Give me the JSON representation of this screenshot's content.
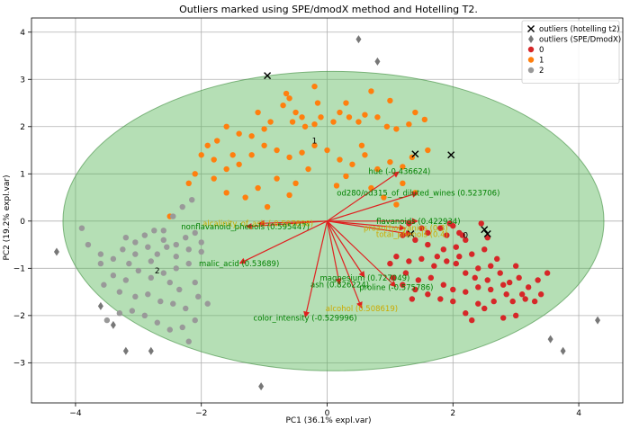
{
  "chart_data": {
    "type": "scatter",
    "title": "Outliers marked using SPE/dmodX method and Hotelling T2.",
    "xlabel": "PC1 (36.1% expl.var)",
    "ylabel": "PC2 (19.2% expl.var)",
    "xlim": [
      -4.7,
      4.7
    ],
    "ylim": [
      -3.85,
      4.3
    ],
    "x_ticks": [
      -4,
      -2,
      0,
      2,
      4
    ],
    "y_ticks": [
      -3,
      -2,
      -1,
      0,
      1,
      2,
      3,
      4
    ],
    "grid": true,
    "legend_position": "top-right",
    "legend": [
      {
        "label": "outliers (hotelling t2)",
        "marker": "x",
        "color": "#000000"
      },
      {
        "label": "outliers (SPE/DmodX)",
        "marker": "diamond",
        "color": "#777777"
      },
      {
        "label": "0",
        "marker": "circle",
        "color": "#d62728"
      },
      {
        "label": "1",
        "marker": "circle",
        "color": "#ff7f0e"
      },
      {
        "label": "2",
        "marker": "circle",
        "color": "#999999"
      }
    ],
    "ellipse": {
      "cx": 0.1,
      "cy": 0.0,
      "rx": 4.3,
      "ry": 3.17,
      "color": "#5cb85c"
    },
    "cluster_labels": [
      {
        "text": "1",
        "x": -0.2,
        "y": 1.7
      },
      {
        "text": "2",
        "x": -2.7,
        "y": -1.05
      },
      {
        "text": "0",
        "x": 2.2,
        "y": -0.3
      }
    ],
    "loadings": [
      {
        "label": "hue (-0.436624)",
        "x": 1.15,
        "y": 1.05,
        "color": "#008000"
      },
      {
        "label": "od280/od315_of_diluted_wines (0.523706)",
        "x": 1.45,
        "y": 0.6,
        "color": "#008000"
      },
      {
        "label": "alcalinity_of_ash (-0.597898)",
        "x": -1.1,
        "y": -0.05,
        "color": "#ccaa00"
      },
      {
        "label": "nonflavanoid_phenols (0.595447)",
        "x": -1.3,
        "y": -0.12,
        "color": "#008000"
      },
      {
        "label": "flavanoids (0.422934)",
        "x": 1.45,
        "y": 0.0,
        "color": "#008000"
      },
      {
        "label": "proanthocyanins (0.3)",
        "x": 1.25,
        "y": -0.15,
        "color": "#ccaa00"
      },
      {
        "label": "total_phenols (0.4)",
        "x": 1.35,
        "y": -0.28,
        "color": "#ccaa00"
      },
      {
        "label": "malic_acid (0.53689)",
        "x": -1.4,
        "y": -0.9,
        "color": "#008000"
      },
      {
        "label": "magnesium (0.727049)",
        "x": 0.6,
        "y": -1.2,
        "color": "#008000"
      },
      {
        "label": "proline (-0.575786)",
        "x": 1.1,
        "y": -1.4,
        "color": "#008000"
      },
      {
        "label": "ash (0.826224)",
        "x": 0.2,
        "y": -1.35,
        "color": "#008000"
      },
      {
        "label": "alcohol (0.508619)",
        "x": 0.55,
        "y": -1.85,
        "color": "#ccaa00"
      },
      {
        "label": "color_intensity (-0.529996)",
        "x": -0.35,
        "y": -2.05,
        "color": "#008000"
      }
    ],
    "series": [
      {
        "name": "0",
        "color": "#d62728",
        "points": [
          [
            1.3,
            -0.05
          ],
          [
            1.5,
            -0.15
          ],
          [
            1.6,
            -0.25
          ],
          [
            1.8,
            -0.15
          ],
          [
            1.9,
            -0.3
          ],
          [
            2.0,
            -0.1
          ],
          [
            2.1,
            -0.25
          ],
          [
            1.95,
            -0.05
          ],
          [
            2.2,
            -0.4
          ],
          [
            1.2,
            -0.3
          ],
          [
            1.4,
            -0.4
          ],
          [
            1.6,
            -0.5
          ],
          [
            1.85,
            -0.6
          ],
          [
            2.05,
            -0.55
          ],
          [
            2.3,
            -0.7
          ],
          [
            2.5,
            -0.6
          ],
          [
            2.7,
            -0.8
          ],
          [
            2.6,
            -0.95
          ],
          [
            2.4,
            -1.0
          ],
          [
            2.2,
            -1.1
          ],
          [
            2.05,
            -0.9
          ],
          [
            1.9,
            -0.85
          ],
          [
            1.7,
            -0.95
          ],
          [
            1.5,
            -0.8
          ],
          [
            1.3,
            -0.85
          ],
          [
            1.1,
            -0.75
          ],
          [
            1.0,
            -0.9
          ],
          [
            1.25,
            -1.1
          ],
          [
            1.45,
            -1.25
          ],
          [
            1.65,
            -1.2
          ],
          [
            1.85,
            -1.35
          ],
          [
            2.0,
            -1.45
          ],
          [
            2.2,
            -1.5
          ],
          [
            2.4,
            -1.4
          ],
          [
            2.55,
            -1.25
          ],
          [
            2.75,
            -1.1
          ],
          [
            2.9,
            -1.3
          ],
          [
            3.05,
            -1.2
          ],
          [
            3.2,
            -1.4
          ],
          [
            3.35,
            -1.25
          ],
          [
            3.5,
            -1.1
          ],
          [
            3.4,
            -1.55
          ],
          [
            3.15,
            -1.65
          ],
          [
            2.85,
            -1.55
          ],
          [
            2.65,
            -1.7
          ],
          [
            2.4,
            -1.75
          ],
          [
            2.2,
            -1.95
          ],
          [
            2.0,
            -1.7
          ],
          [
            1.8,
            -1.65
          ],
          [
            1.6,
            -1.55
          ],
          [
            1.4,
            -1.45
          ],
          [
            1.2,
            -1.35
          ],
          [
            1.05,
            -1.2
          ],
          [
            2.35,
            -1.2
          ],
          [
            2.55,
            -0.35
          ],
          [
            3.0,
            -0.95
          ],
          [
            2.95,
            -1.7
          ],
          [
            2.6,
            -1.45
          ],
          [
            3.3,
            -1.7
          ],
          [
            2.3,
            -2.1
          ],
          [
            3.0,
            -2.0
          ],
          [
            2.8,
            -2.05
          ],
          [
            2.5,
            -1.85
          ],
          [
            2.15,
            -0.3
          ],
          [
            1.75,
            -0.75
          ],
          [
            2.45,
            -0.05
          ],
          [
            1.35,
            -1.65
          ],
          [
            2.8,
            -1.35
          ],
          [
            3.1,
            -1.55
          ],
          [
            2.1,
            -0.75
          ]
        ]
      },
      {
        "name": "1",
        "color": "#ff7f0e",
        "points": [
          [
            -0.6,
            2.6
          ],
          [
            -0.65,
            2.7
          ],
          [
            -0.7,
            2.45
          ],
          [
            -0.5,
            2.3
          ],
          [
            -0.4,
            2.2
          ],
          [
            -0.55,
            2.1
          ],
          [
            -0.35,
            2.0
          ],
          [
            -0.2,
            2.05
          ],
          [
            -0.1,
            2.2
          ],
          [
            0.1,
            2.1
          ],
          [
            0.2,
            2.3
          ],
          [
            0.35,
            2.2
          ],
          [
            0.5,
            2.1
          ],
          [
            0.6,
            2.25
          ],
          [
            0.8,
            2.2
          ],
          [
            0.95,
            2.0
          ],
          [
            1.1,
            1.95
          ],
          [
            1.3,
            2.05
          ],
          [
            1.4,
            2.3
          ],
          [
            1.55,
            2.15
          ],
          [
            0.7,
            2.75
          ],
          [
            1.0,
            2.55
          ],
          [
            0.3,
            2.5
          ],
          [
            -0.2,
            2.85
          ],
          [
            -0.9,
            2.1
          ],
          [
            -1.1,
            2.3
          ],
          [
            -1.0,
            1.95
          ],
          [
            -1.2,
            1.8
          ],
          [
            -1.4,
            1.85
          ],
          [
            -1.6,
            2.0
          ],
          [
            -1.75,
            1.7
          ],
          [
            -1.9,
            1.6
          ],
          [
            -2.0,
            1.4
          ],
          [
            -1.8,
            1.3
          ],
          [
            -1.6,
            1.1
          ],
          [
            -1.4,
            1.2
          ],
          [
            -1.2,
            1.4
          ],
          [
            -1.0,
            1.6
          ],
          [
            -0.8,
            1.5
          ],
          [
            -0.6,
            1.35
          ],
          [
            -0.4,
            1.45
          ],
          [
            -0.2,
            1.6
          ],
          [
            0.0,
            1.5
          ],
          [
            0.2,
            1.3
          ],
          [
            0.4,
            1.2
          ],
          [
            0.6,
            1.4
          ],
          [
            0.8,
            1.1
          ],
          [
            1.0,
            1.25
          ],
          [
            1.2,
            1.15
          ],
          [
            1.35,
            1.35
          ],
          [
            0.7,
            0.7
          ],
          [
            0.9,
            0.5
          ],
          [
            1.2,
            0.8
          ],
          [
            1.4,
            0.6
          ],
          [
            -0.5,
            0.8
          ],
          [
            -0.8,
            0.9
          ],
          [
            -1.1,
            0.7
          ],
          [
            -1.3,
            0.5
          ],
          [
            -1.6,
            0.6
          ],
          [
            -1.8,
            0.9
          ],
          [
            -2.1,
            1.0
          ],
          [
            -2.2,
            0.8
          ],
          [
            -2.5,
            0.1
          ],
          [
            -1.5,
            1.4
          ],
          [
            -0.95,
            0.3
          ],
          [
            -0.3,
            1.1
          ],
          [
            0.3,
            0.95
          ],
          [
            -0.6,
            0.55
          ],
          [
            0.15,
            0.75
          ],
          [
            1.1,
            0.35
          ],
          [
            0.55,
            1.6
          ],
          [
            -0.15,
            2.5
          ],
          [
            1.6,
            1.5
          ]
        ]
      },
      {
        "name": "2",
        "color": "#999999",
        "points": [
          [
            -3.9,
            -0.15
          ],
          [
            -3.8,
            -0.5
          ],
          [
            -3.6,
            -0.7
          ],
          [
            -3.4,
            -0.8
          ],
          [
            -3.2,
            -0.35
          ],
          [
            -3.05,
            -0.45
          ],
          [
            -2.9,
            -0.3
          ],
          [
            -2.75,
            -0.2
          ],
          [
            -2.6,
            -0.4
          ],
          [
            -2.4,
            -0.5
          ],
          [
            -2.25,
            -0.35
          ],
          [
            -2.1,
            -0.25
          ],
          [
            -2.0,
            -0.65
          ],
          [
            -2.2,
            -0.9
          ],
          [
            -2.4,
            -1.0
          ],
          [
            -2.6,
            -1.1
          ],
          [
            -2.8,
            -1.2
          ],
          [
            -3.0,
            -1.05
          ],
          [
            -3.2,
            -1.25
          ],
          [
            -3.4,
            -1.15
          ],
          [
            -3.55,
            -1.35
          ],
          [
            -3.3,
            -1.5
          ],
          [
            -3.05,
            -1.6
          ],
          [
            -2.85,
            -1.55
          ],
          [
            -2.65,
            -1.7
          ],
          [
            -2.45,
            -1.75
          ],
          [
            -2.25,
            -1.85
          ],
          [
            -2.05,
            -1.6
          ],
          [
            -1.9,
            -1.75
          ],
          [
            -2.1,
            -2.1
          ],
          [
            -2.3,
            -2.25
          ],
          [
            -2.5,
            -2.3
          ],
          [
            -2.7,
            -2.15
          ],
          [
            -2.9,
            -2.0
          ],
          [
            -3.1,
            -1.9
          ],
          [
            -3.3,
            -1.95
          ],
          [
            -3.5,
            -2.1
          ],
          [
            -2.2,
            -0.6
          ],
          [
            -2.4,
            -0.75
          ],
          [
            -2.55,
            -0.55
          ],
          [
            -2.7,
            -0.7
          ],
          [
            -2.85,
            -0.55
          ],
          [
            -3.05,
            -0.7
          ],
          [
            -3.25,
            -0.6
          ],
          [
            -2.6,
            -0.2
          ],
          [
            -2.45,
            0.1
          ],
          [
            -2.15,
            0.45
          ],
          [
            -2.3,
            0.3
          ],
          [
            -2.0,
            -0.45
          ],
          [
            -2.1,
            -1.3
          ],
          [
            -2.35,
            -1.45
          ],
          [
            -2.8,
            -0.85
          ],
          [
            -3.15,
            -0.9
          ],
          [
            -2.2,
            -2.55
          ],
          [
            -2.5,
            -1.3
          ],
          [
            -3.6,
            -0.9
          ]
        ]
      },
      {
        "name": "outliers (hotelling t2)",
        "color": "#000000",
        "points": [
          [
            -0.95,
            3.08
          ],
          [
            1.4,
            1.42
          ],
          [
            1.97,
            1.4
          ],
          [
            1.33,
            -0.27
          ],
          [
            2.5,
            -0.18
          ],
          [
            2.55,
            -0.27
          ]
        ]
      },
      {
        "name": "outliers (SPE/DmodX)",
        "color": "#777777",
        "points": [
          [
            0.5,
            3.85
          ],
          [
            0.8,
            3.38
          ],
          [
            -4.3,
            -0.65
          ],
          [
            -3.6,
            -1.8
          ],
          [
            -3.4,
            -2.2
          ],
          [
            -3.2,
            -2.75
          ],
          [
            -2.8,
            -2.75
          ],
          [
            -1.05,
            -3.5
          ],
          [
            4.3,
            -2.1
          ],
          [
            3.55,
            -2.5
          ],
          [
            3.75,
            -2.75
          ]
        ]
      }
    ]
  }
}
